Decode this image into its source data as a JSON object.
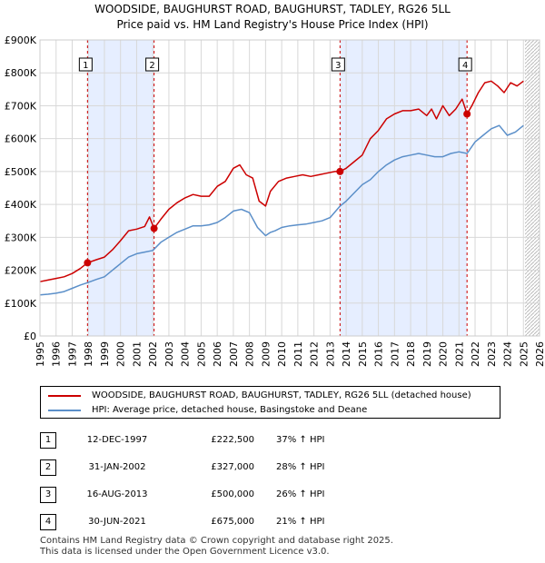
{
  "title_line1": "WOODSIDE, BAUGHURST ROAD, BAUGHURST, TADLEY, RG26 5LL",
  "title_line2": "Price paid vs. HM Land Registry's House Price Index (HPI)",
  "legend": {
    "red_label": "WOODSIDE, BAUGHURST ROAD, BAUGHURST, TADLEY, RG26 5LL (detached house)",
    "blue_label": "HPI: Average price, detached house, Basingstoke and Deane"
  },
  "transactions": [
    {
      "n": "1",
      "date": "12-DEC-1997",
      "price": "£222,500",
      "hpi": "37% ↑ HPI"
    },
    {
      "n": "2",
      "date": "31-JAN-2002",
      "price": "£327,000",
      "hpi": "28% ↑ HPI"
    },
    {
      "n": "3",
      "date": "16-AUG-2013",
      "price": "£500,000",
      "hpi": "26% ↑ HPI"
    },
    {
      "n": "4",
      "date": "30-JUN-2021",
      "price": "£675,000",
      "hpi": "21% ↑ HPI"
    }
  ],
  "footer_line1": "Contains HM Land Registry data © Crown copyright and database right 2025.",
  "footer_line2": "This data is licensed under the Open Government Licence v3.0.",
  "colors": {
    "red": "#cc0000",
    "blue": "#5b8fc9",
    "band": "#e6eeff",
    "grid": "#d8d8d8"
  },
  "chart_data": {
    "type": "line",
    "xlabel": "",
    "ylabel": "",
    "xlim": [
      1995,
      2026
    ],
    "ylim": [
      0,
      900000
    ],
    "y_ticks": [
      0,
      100000,
      200000,
      300000,
      400000,
      500000,
      600000,
      700000,
      800000,
      900000
    ],
    "y_tick_labels": [
      "£0",
      "£100K",
      "£200K",
      "£300K",
      "£400K",
      "£500K",
      "£600K",
      "£700K",
      "£800K",
      "£900K"
    ],
    "x_ticks": [
      1995,
      1996,
      1997,
      1998,
      1999,
      2000,
      2001,
      2002,
      2003,
      2004,
      2005,
      2006,
      2007,
      2008,
      2009,
      2010,
      2011,
      2012,
      2013,
      2014,
      2015,
      2016,
      2017,
      2018,
      2019,
      2020,
      2021,
      2022,
      2023,
      2024,
      2025,
      2026
    ],
    "x_tick_labels": [
      "1995",
      "1996",
      "1997",
      "1998",
      "1999",
      "2000",
      "2001",
      "2002",
      "2003",
      "2004",
      "2005",
      "2006",
      "2007",
      "2008",
      "2009",
      "2010",
      "2011",
      "2012",
      "2013",
      "2014",
      "2015",
      "2016",
      "2017",
      "2018",
      "2019",
      "2020",
      "2021",
      "2022",
      "2023",
      "2024",
      "2025",
      "2026"
    ],
    "shaded_ranges": [
      [
        1997.95,
        2002.08
      ],
      [
        2013.62,
        2021.5
      ]
    ],
    "forecast_start": 2025.1,
    "series": [
      {
        "name": "WOODSIDE, BAUGHURST ROAD, BAUGHURST, TADLEY, RG26 5LL (detached house)",
        "x": [
          1995.0,
          1995.5,
          1996.0,
          1996.5,
          1997.0,
          1997.5,
          1997.95,
          1998.5,
          1999.0,
          1999.5,
          2000.0,
          2000.5,
          2001.0,
          2001.5,
          2001.8,
          2002.08,
          2002.5,
          2003.0,
          2003.5,
          2004.0,
          2004.5,
          2005.0,
          2005.5,
          2006.0,
          2006.5,
          2007.0,
          2007.4,
          2007.8,
          2008.2,
          2008.6,
          2009.0,
          2009.3,
          2009.8,
          2010.3,
          2010.8,
          2011.3,
          2011.8,
          2012.3,
          2012.8,
          2013.3,
          2013.62,
          2014.0,
          2014.5,
          2015.0,
          2015.5,
          2016.0,
          2016.5,
          2017.0,
          2017.5,
          2018.0,
          2018.5,
          2019.0,
          2019.3,
          2019.6,
          2020.0,
          2020.4,
          2020.8,
          2021.2,
          2021.5,
          2021.8,
          2022.2,
          2022.6,
          2023.0,
          2023.4,
          2023.8,
          2024.2,
          2024.6,
          2025.0
        ],
        "y": [
          165000,
          170000,
          175000,
          180000,
          190000,
          205000,
          222500,
          232000,
          240000,
          262000,
          290000,
          320000,
          325000,
          333000,
          362000,
          327000,
          355000,
          385000,
          405000,
          420000,
          430000,
          425000,
          425000,
          455000,
          470000,
          510000,
          520000,
          490000,
          480000,
          410000,
          395000,
          440000,
          470000,
          480000,
          485000,
          490000,
          485000,
          490000,
          495000,
          500000,
          500000,
          510000,
          530000,
          550000,
          600000,
          625000,
          660000,
          675000,
          685000,
          685000,
          690000,
          670000,
          690000,
          660000,
          700000,
          670000,
          690000,
          720000,
          675000,
          700000,
          740000,
          770000,
          775000,
          760000,
          740000,
          770000,
          760000,
          775000
        ]
      },
      {
        "name": "HPI: Average price, detached house, Basingstoke and Deane",
        "x": [
          1995.0,
          1995.5,
          1996.0,
          1996.5,
          1997.0,
          1997.5,
          1997.95,
          1998.5,
          1999.0,
          1999.5,
          2000.0,
          2000.5,
          2001.0,
          2001.5,
          2002.0,
          2002.5,
          2003.0,
          2003.5,
          2004.0,
          2004.5,
          2005.0,
          2005.5,
          2006.0,
          2006.5,
          2007.0,
          2007.5,
          2008.0,
          2008.5,
          2009.0,
          2009.3,
          2009.6,
          2010.0,
          2010.5,
          2011.0,
          2011.5,
          2012.0,
          2012.5,
          2013.0,
          2013.62,
          2014.0,
          2014.5,
          2015.0,
          2015.5,
          2016.0,
          2016.5,
          2017.0,
          2017.5,
          2018.0,
          2018.5,
          2019.0,
          2019.5,
          2020.0,
          2020.5,
          2021.0,
          2021.5,
          2022.0,
          2022.5,
          2023.0,
          2023.5,
          2024.0,
          2024.5,
          2025.0
        ],
        "y": [
          125000,
          127000,
          130000,
          135000,
          145000,
          155000,
          162000,
          172000,
          180000,
          200000,
          220000,
          240000,
          250000,
          255000,
          260000,
          285000,
          300000,
          315000,
          325000,
          335000,
          335000,
          338000,
          345000,
          360000,
          380000,
          385000,
          375000,
          330000,
          305000,
          315000,
          320000,
          330000,
          335000,
          338000,
          340000,
          345000,
          350000,
          360000,
          395000,
          410000,
          435000,
          460000,
          475000,
          500000,
          520000,
          535000,
          545000,
          550000,
          555000,
          550000,
          545000,
          545000,
          555000,
          560000,
          555000,
          590000,
          610000,
          630000,
          640000,
          610000,
          620000,
          640000
        ]
      }
    ],
    "sale_points": [
      {
        "label": "1",
        "x": 1997.95,
        "y": 222500
      },
      {
        "label": "2",
        "x": 2002.08,
        "y": 327000
      },
      {
        "label": "3",
        "x": 2013.62,
        "y": 500000
      },
      {
        "label": "4",
        "x": 2021.5,
        "y": 675000
      }
    ]
  }
}
